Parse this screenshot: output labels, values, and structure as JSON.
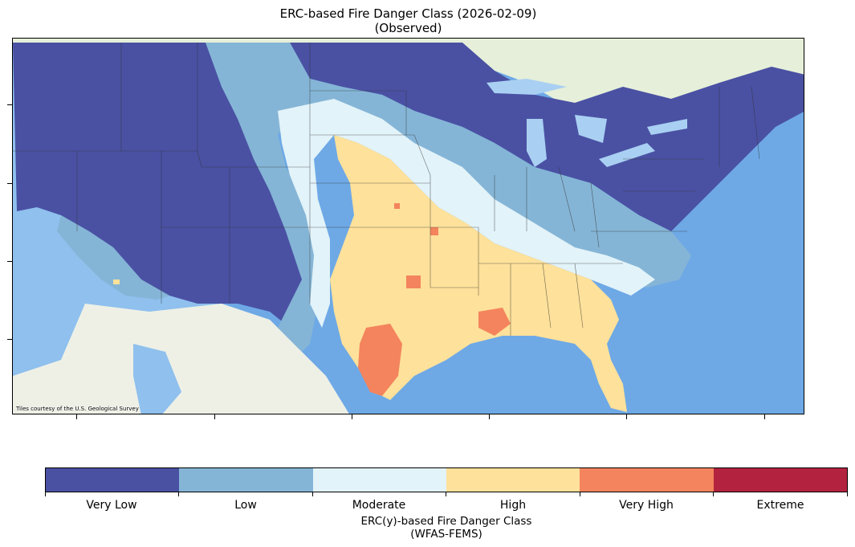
{
  "title": {
    "line1": "ERC-based Fire Danger Class (2026-02-09)",
    "line2": "(Observed)"
  },
  "map": {
    "attribution": "Tiles courtesy of the U.S. Geological Survey",
    "basemap_colors": {
      "ocean": "#7fb6ec",
      "land": "#f1f0ea",
      "canada": "#e5efdd",
      "lakes": "#a9d0f2"
    }
  },
  "legend": {
    "classes": [
      {
        "label": "Very Low",
        "color": "#4a51a3"
      },
      {
        "label": "Low",
        "color": "#85b5d6"
      },
      {
        "label": "Moderate",
        "color": "#e2f3f9"
      },
      {
        "label": "High",
        "color": "#fee19a"
      },
      {
        "label": "Very High",
        "color": "#f4845d"
      },
      {
        "label": "Extreme",
        "color": "#b3233f"
      }
    ],
    "title_line1": "ERC(y)-based Fire Danger Class",
    "title_line2": "(WFAS-FEMS)"
  }
}
